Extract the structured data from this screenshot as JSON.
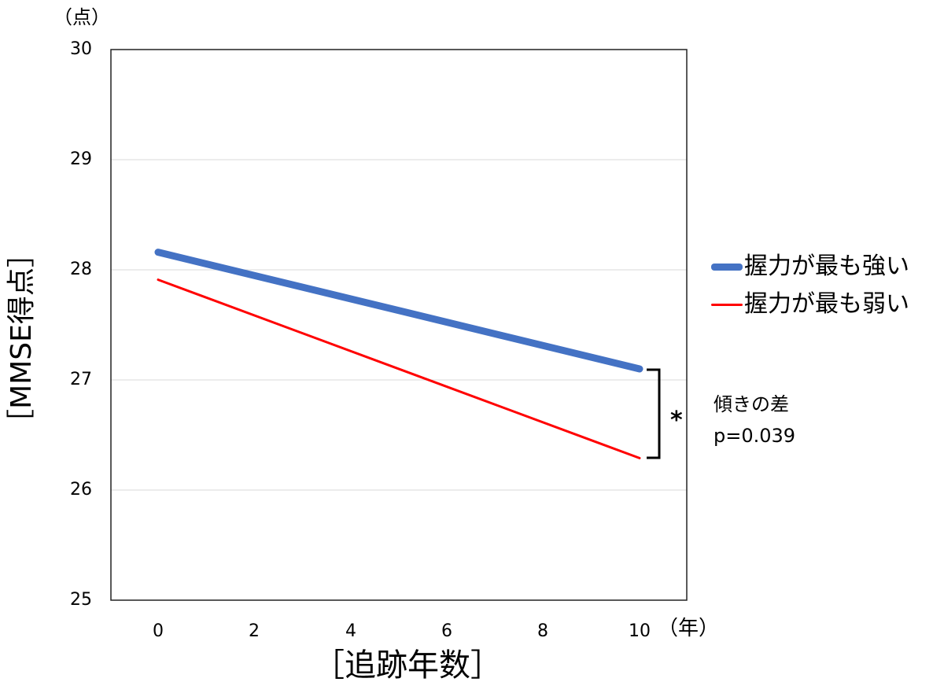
{
  "chart_data": {
    "type": "line",
    "title": "",
    "xlabel": "［追跡年数］",
    "ylabel": "［MMSE得点］",
    "x_unit": "（年）",
    "y_unit": "（点）",
    "x": [
      0,
      10
    ],
    "x_ticks": [
      "0",
      "2",
      "4",
      "6",
      "8",
      "10"
    ],
    "y_ticks": [
      "25",
      "26",
      "27",
      "28",
      "29",
      "30"
    ],
    "xlim": [
      -1,
      11
    ],
    "ylim": [
      25,
      30
    ],
    "grid": true,
    "legend_position": "right",
    "series": [
      {
        "name": "握力が最も強い",
        "color": "#4472C4",
        "values": [
          28.16,
          27.1
        ]
      },
      {
        "name": "握力が最も弱い",
        "color": "#FF0000",
        "values": [
          27.91,
          26.29
        ]
      }
    ],
    "annotations": [
      {
        "text": "*",
        "type": "bracket",
        "x": 10,
        "y_range": [
          26.29,
          27.1
        ]
      },
      {
        "text": "傾きの差",
        "position": "right"
      },
      {
        "text": "p=0.039",
        "position": "right"
      }
    ]
  },
  "axis": {
    "y_unit": "（点）",
    "x_unit": "（年）",
    "ylabel": "［MMSE得点］",
    "xlabel": "［追跡年数］",
    "y_ticks": [
      "30",
      "29",
      "28",
      "27",
      "26",
      "25"
    ],
    "x_ticks": [
      "0",
      "2",
      "4",
      "6",
      "8",
      "10"
    ]
  },
  "legend": {
    "items": [
      {
        "label": "握力が最も強い",
        "color": "#4472C4"
      },
      {
        "label": "握力が最も弱い",
        "color": "#FF0000"
      }
    ]
  },
  "annotation": {
    "asterisk": "*",
    "slope_label": "傾きの差",
    "p_value": "p=0.039"
  }
}
